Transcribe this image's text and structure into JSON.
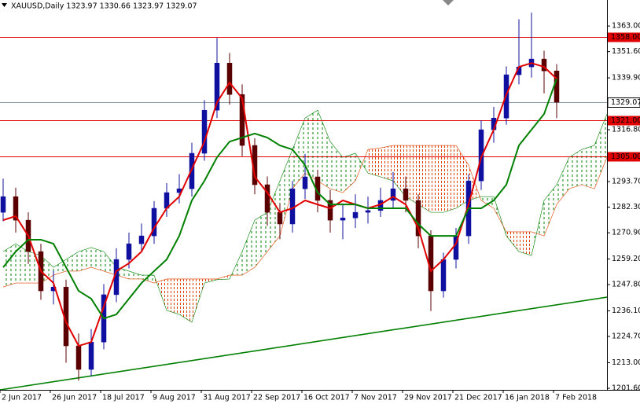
{
  "chart_data": {
    "type": "candlestick",
    "title": "XAUUSD,Daily  1323.97 1330.66 1323.97 1329.07",
    "categories": [
      "2 Jun 2017",
      null,
      null,
      null,
      "26 Jun 2017",
      null,
      null,
      null,
      "18 Jul 2017",
      null,
      null,
      null,
      "9 Aug 2017",
      null,
      null,
      null,
      "31 Aug 2017",
      null,
      null,
      null,
      "22 Sep 2017",
      null,
      null,
      null,
      "16 Oct 2017",
      null,
      null,
      null,
      "7 Nov 2017",
      null,
      null,
      null,
      "29 Nov 2017",
      null,
      null,
      null,
      "21 Dec 2017",
      null,
      null,
      null,
      "16 Jan 2018",
      null,
      null,
      null,
      "7 Feb 2018",
      null,
      null,
      null,
      null
    ],
    "open": [
      1280,
      1287,
      1276.5,
      1262.5,
      1245,
      1246.7,
      1220.5,
      1210,
      1222.2,
      1243.3,
      1259,
      1266,
      1269.5,
      1281.8,
      1288.8,
      1290.5,
      1306.3,
      1325.5,
      1346.5,
      1332.5,
      1309.8,
      1292.3,
      1280,
      1274.8,
      1290.5,
      1295.8,
      1285.3,
      1276.5,
      1277.5,
      1280,
      1280.8,
      1285.3,
      1290.5,
      1285.3,
      1269.5,
      1245,
      1259,
      1269.5,
      1294,
      1316.8,
      1322,
      1341.3,
      1344.8,
      1348.3,
      1343,
      null,
      null,
      null,
      null
    ],
    "high": [
      1295,
      1291,
      1280,
      1266,
      1254,
      1250,
      1226,
      1228,
      1248,
      1264,
      1271,
      1275,
      1285,
      1293,
      1297,
      1311,
      1330,
      1357.7,
      1351,
      1337,
      1313,
      1296,
      1284,
      1294,
      1306,
      1299,
      1290,
      1284,
      1288,
      1287,
      1291,
      1298,
      1296,
      1288,
      1272,
      1262,
      1273,
      1297,
      1321,
      1327,
      1345,
      1366,
      1369,
      1352,
      1346,
      null,
      null,
      null,
      null
    ],
    "low": [
      1276,
      1271,
      1257,
      1241,
      1239,
      1213,
      1205,
      1207,
      1219,
      1240,
      1255,
      1262,
      1266,
      1278,
      1284,
      1287,
      1303,
      1322,
      1328,
      1305,
      1288,
      1274,
      1268,
      1271,
      1286,
      1280,
      1271,
      1268,
      1273,
      1275,
      1278,
      1282,
      1280,
      1264,
      1236,
      1242,
      1255,
      1266,
      1290,
      1311,
      1319,
      1337,
      1340,
      1333,
      1322,
      null,
      null,
      null,
      null
    ],
    "close": [
      1287,
      1276.5,
      1262.5,
      1245,
      1246.7,
      1220.5,
      1210,
      1222.2,
      1243.3,
      1259,
      1266,
      1269.5,
      1281.8,
      1288.8,
      1290.5,
      1306.3,
      1325.5,
      1346.5,
      1332.5,
      1309.8,
      1292.3,
      1280,
      1274.8,
      1290.5,
      1295.8,
      1285.3,
      1276.5,
      1277.5,
      1280,
      1280.8,
      1285.3,
      1290.5,
      1285.3,
      1269.5,
      1245,
      1259,
      1269.5,
      1294,
      1316.8,
      1322,
      1341.3,
      1344.8,
      1348.3,
      1343,
      1329.07,
      null,
      null,
      null,
      null
    ],
    "up_color": "#1010a0",
    "down_color": "#5a0000",
    "lines": [
      {
        "color": "#e00000",
        "values": [
          1276.5,
          1278.3,
          1269.5,
          1253.8,
          1248.5,
          1231,
          1220.5,
          1222.2,
          1238,
          1253.8,
          1257.3,
          1262.5,
          1273,
          1281.8,
          1287,
          1299.3,
          1311.5,
          1329,
          1337.8,
          1330.8,
          1295.8,
          1288.8,
          1280,
          1281.8,
          1285.3,
          1283.5,
          1281.8,
          1285.3,
          1283.5,
          1281.8,
          1283.5,
          1287,
          1283.5,
          1273,
          1253.8,
          1259,
          1266,
          1283.5,
          1304.5,
          1316.8,
          1332.5,
          1344.8,
          1346.5,
          1344.8,
          1339.5,
          null,
          null,
          null,
          null
        ]
      },
      {
        "color": "#008000",
        "values": [
          1255.5,
          1262.5,
          1267.8,
          1267.8,
          1266,
          1255.5,
          1245,
          1241.5,
          1232.7,
          1234.5,
          1241.5,
          1248.5,
          1253.8,
          1259,
          1269.5,
          1285.3,
          1294,
          1304.5,
          1311.5,
          1313.3,
          1315.1,
          1313.3,
          1309.8,
          1308,
          1301,
          1288.8,
          1283.5,
          1283.5,
          1283.5,
          1281.8,
          1281.8,
          1281.8,
          1281.8,
          1274.8,
          1269.5,
          1269.5,
          1269.5,
          1281.8,
          1281.8,
          1285.3,
          1292.3,
          1309.8,
          1316.8,
          1323.8,
          1339.5,
          null,
          null,
          null,
          null
        ]
      }
    ],
    "cloud": {
      "span_a": [
        1262.5,
        1266,
        1262.5,
        1260.8,
        1255.5,
        1259,
        1262.5,
        1264.3,
        1262.5,
        1255.5,
        1253.8,
        1252,
        1252,
        1236.3,
        1234.5,
        1231,
        1248.5,
        1250,
        1250.3,
        1262.5,
        1276.5,
        1280,
        1294,
        1308,
        1322,
        1325.5,
        1311.5,
        1304.5,
        1306.3,
        1297.5,
        1295.8,
        1294,
        1287,
        1283.5,
        1280,
        1280,
        1281.8,
        1285.3,
        1287,
        1287,
        1269.5,
        1262.5,
        1260.8,
        1285.3,
        1292.3,
        1304.5,
        1308,
        1309.8,
        1323.8
      ],
      "span_b": [
        1246.7,
        1248.5,
        1248.5,
        1248.5,
        1252,
        1253.8,
        1253.8,
        1255.5,
        1253.8,
        1252,
        1250.3,
        1250.3,
        1248.5,
        1250.3,
        1250.3,
        1250.3,
        1250.3,
        1250.3,
        1252,
        1252,
        1255.5,
        1262.5,
        1269.5,
        1290.5,
        1297.5,
        1294,
        1290.5,
        1288.8,
        1294,
        1308,
        1308.7,
        1309.8,
        1309.8,
        1309.8,
        1309.8,
        1309.8,
        1309.8,
        1301,
        1285.3,
        1281.8,
        1271.3,
        1271.3,
        1271.3,
        1269.5,
        1283.5,
        1290.5,
        1292.3,
        1290.5,
        1304.5
      ],
      "bull_color": "#008000",
      "bear_color": "#e04000"
    },
    "trendline": {
      "color": "#008000",
      "values": [
        1200.9,
        1242.2
      ]
    },
    "hlines": [
      {
        "value": 1358,
        "label": "1358.00",
        "color": "#e00000"
      },
      {
        "value": 1321,
        "label": "1321.00",
        "color": "#e00000"
      },
      {
        "value": 1305,
        "label": "1305.00",
        "color": "#e00000"
      }
    ],
    "price_line": {
      "value": 1329.07,
      "label": "1329.07",
      "color": "#8a9aa6"
    },
    "ylim": [
      1200.9,
      1374.6
    ],
    "yticks": [
      {
        "value": 1363,
        "label": "1363.00"
      },
      {
        "value": 1351.6,
        "label": "1351.60"
      },
      {
        "value": 1339.9,
        "label": "1339.90"
      },
      {
        "value": 1316.8,
        "label": "1316.80"
      },
      {
        "value": 1293.7,
        "label": "1293.70"
      },
      {
        "value": 1282.3,
        "label": "1282.30"
      },
      {
        "value": 1270.9,
        "label": "1270.90"
      },
      {
        "value": 1259.2,
        "label": "1259.20"
      },
      {
        "value": 1247.8,
        "label": "1247.80"
      },
      {
        "value": 1236.1,
        "label": "1236.10"
      },
      {
        "value": 1224.7,
        "label": "1224.70"
      },
      {
        "value": 1213,
        "label": "1213.00"
      },
      {
        "value": 1201.6,
        "label": "1201.60"
      }
    ]
  }
}
